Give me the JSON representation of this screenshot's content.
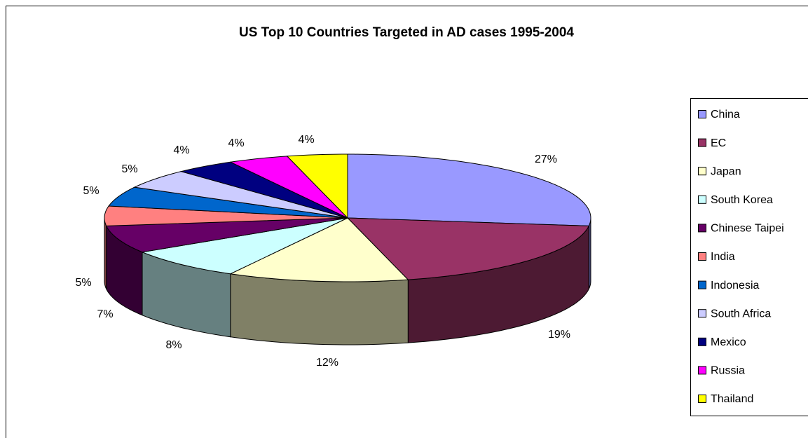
{
  "chart_data": {
    "type": "pie3d",
    "title": "US Top 10 Countries Targeted in AD cases 1995-2004",
    "categories": [
      "China",
      "EC",
      "Japan",
      "South Korea",
      "Chinese Taipei",
      "India",
      "Indonesia",
      "South Africa",
      "Mexico",
      "Russia",
      "Thailand"
    ],
    "values": [
      27,
      19,
      12,
      8,
      7,
      5,
      5,
      5,
      4,
      4,
      4
    ],
    "value_labels": [
      "27%",
      "19%",
      "12%",
      "8%",
      "7%",
      "5%",
      "5%",
      "5%",
      "4%",
      "4%",
      "4%"
    ],
    "colors": [
      "#9999FF",
      "#993366",
      "#FFFFCC",
      "#CCFFFF",
      "#660066",
      "#FF8080",
      "#0066CC",
      "#CCCCFF",
      "#000080",
      "#FF00FF",
      "#FFFF00"
    ],
    "legend": "right"
  }
}
